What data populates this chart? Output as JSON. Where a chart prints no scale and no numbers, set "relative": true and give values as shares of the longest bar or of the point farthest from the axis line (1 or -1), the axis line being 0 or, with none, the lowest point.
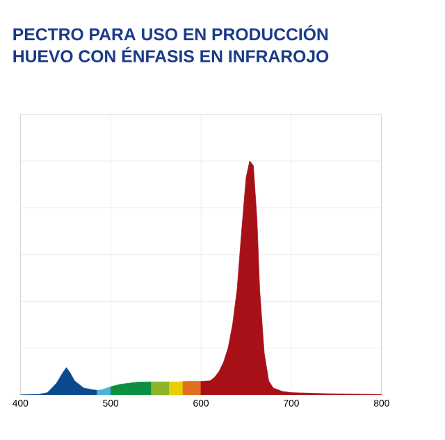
{
  "chart_data": {
    "type": "area",
    "title": "PECTRO PARA USO EN PRODUCCIÓN\nHUEVO CON ÉNFASIS EN INFRAROJO",
    "relative": true,
    "xlim": [
      400,
      800
    ],
    "xticks": [
      400,
      500,
      600,
      700,
      800
    ],
    "grid": true,
    "series": [
      {
        "color": "#0b4a8e",
        "x": [
          400,
          420,
          430,
          440,
          447,
          451,
          455,
          460,
          470,
          480,
          485
        ],
        "values": [
          0,
          0.002,
          0.01,
          0.05,
          0.095,
          0.117,
          0.095,
          0.06,
          0.03,
          0.022,
          0.02
        ]
      },
      {
        "color": "#4fb0d8",
        "x": [
          485,
          490,
          500
        ],
        "values": [
          0.02,
          0.022,
          0.035
        ]
      },
      {
        "color": "#0a9040",
        "x": [
          500,
          510,
          520,
          530,
          545
        ],
        "values": [
          0.035,
          0.045,
          0.05,
          0.055,
          0.056
        ]
      },
      {
        "color": "#8db426",
        "x": [
          545,
          555,
          565
        ],
        "values": [
          0.056,
          0.056,
          0.056
        ]
      },
      {
        "color": "#e6d000",
        "x": [
          565,
          575,
          580
        ],
        "values": [
          0.056,
          0.056,
          0.057
        ]
      },
      {
        "color": "#e07020",
        "x": [
          580,
          590,
          600
        ],
        "values": [
          0.057,
          0.058,
          0.058
        ]
      },
      {
        "color": "#a81018",
        "x": [
          600,
          610,
          615,
          620,
          625,
          630,
          635,
          640,
          645,
          650,
          654,
          658,
          662,
          665,
          670,
          675,
          680,
          690,
          700,
          750,
          800
        ],
        "values": [
          0.058,
          0.06,
          0.075,
          0.1,
          0.14,
          0.2,
          0.3,
          0.45,
          0.7,
          0.93,
          1.0,
          0.98,
          0.75,
          0.45,
          0.18,
          0.06,
          0.03,
          0.015,
          0.01,
          0.004,
          0.002
        ]
      }
    ]
  }
}
